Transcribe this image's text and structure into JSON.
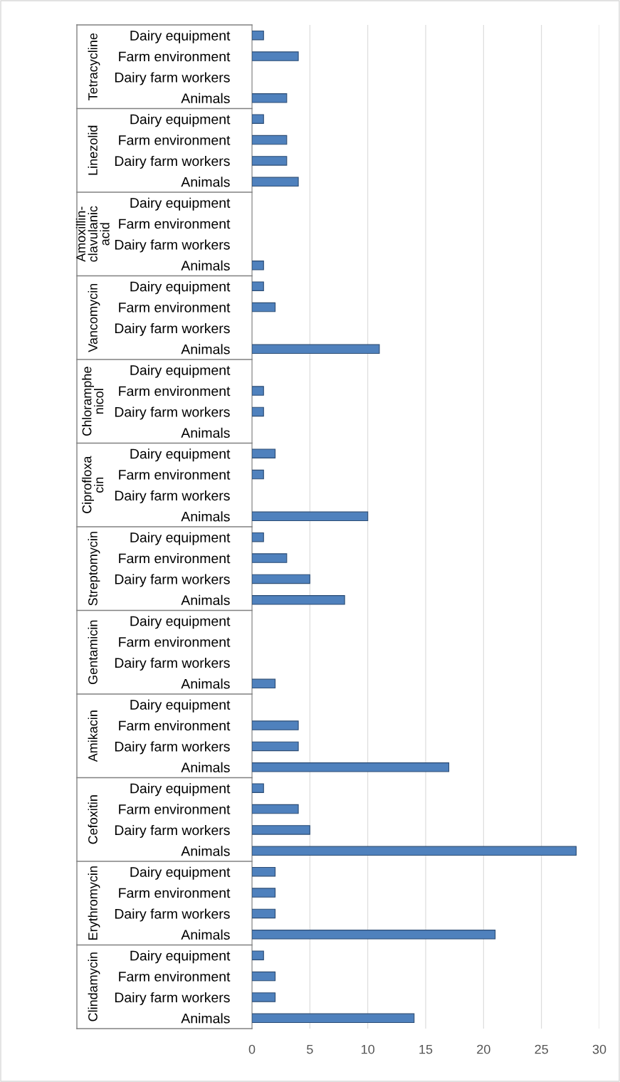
{
  "chart_data": {
    "type": "bar",
    "orientation": "horizontal",
    "categories": [
      "Dairy equipment",
      "Farm environment",
      "Dairy farm workers",
      "Animals",
      "Dairy equipment",
      "Farm environment",
      "Dairy farm workers",
      "Animals",
      "Dairy equipment",
      "Farm environment",
      "Dairy farm workers",
      "Animals",
      "Dairy equipment",
      "Farm environment",
      "Dairy farm workers",
      "Animals",
      "Dairy equipment",
      "Farm environment",
      "Dairy farm workers",
      "Animals",
      "Dairy equipment",
      "Farm environment",
      "Dairy farm workers",
      "Animals",
      "Dairy equipment",
      "Farm environment",
      "Dairy farm workers",
      "Animals",
      "Dairy equipment",
      "Farm environment",
      "Dairy farm workers",
      "Animals",
      "Dairy equipment",
      "Farm environment",
      "Dairy farm workers",
      "Animals",
      "Dairy equipment",
      "Farm environment",
      "Dairy farm workers",
      "Animals",
      "Dairy equipment",
      "Farm environment",
      "Dairy farm workers",
      "Animals",
      "Dairy equipment",
      "Farm environment",
      "Dairy farm workers",
      "Animals"
    ],
    "values": [
      1,
      4,
      null,
      3,
      1,
      3,
      3,
      4,
      null,
      null,
      null,
      1,
      1,
      2,
      null,
      11,
      null,
      1,
      1,
      null,
      2,
      1,
      null,
      10,
      1,
      3,
      5,
      8,
      null,
      null,
      null,
      2,
      null,
      4,
      4,
      17,
      1,
      4,
      5,
      28,
      2,
      2,
      2,
      21,
      1,
      2,
      2,
      14
    ],
    "color": "#4f81bd",
    "annotations": [
      "Tetracycline",
      "Linezolid",
      "Amoxillin-clavulanic acid",
      "Vancomycin",
      "Chloramphenicol",
      "Ciprofloxacin",
      "Streptomycin",
      "Gentamicin",
      "Amikacin",
      "Cefoxitin",
      "Erythromycin",
      "Clindamycin"
    ],
    "xlim": [
      0,
      30
    ],
    "xticks": [
      0,
      5,
      10,
      15,
      20,
      25,
      30
    ],
    "grid": "x"
  }
}
